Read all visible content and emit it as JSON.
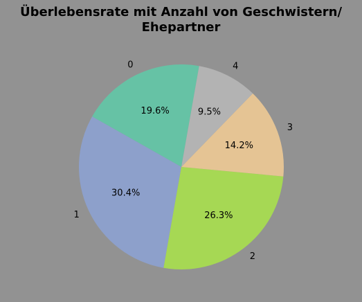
{
  "page": {
    "background": "#929292"
  },
  "chart_data": {
    "type": "pie",
    "title_lines": [
      "Überlebensrate mit Anzahl von Geschwistern/",
      "Ehepartner"
    ],
    "start_angle_deg": 80,
    "direction": "counterclockwise",
    "slices": [
      {
        "label": "0",
        "value": 19.6,
        "pct_label": "19.6%",
        "color": "#66c2a5"
      },
      {
        "label": "1",
        "value": 30.4,
        "pct_label": "30.4%",
        "color": "#8da0cb"
      },
      {
        "label": "2",
        "value": 26.3,
        "pct_label": "26.3%",
        "color": "#a6d854"
      },
      {
        "label": "3",
        "value": 14.2,
        "pct_label": "14.2%",
        "color": "#e5c494"
      },
      {
        "label": "4",
        "value": 9.5,
        "pct_label": "9.5%",
        "color": "#b3b3b3"
      }
    ]
  }
}
